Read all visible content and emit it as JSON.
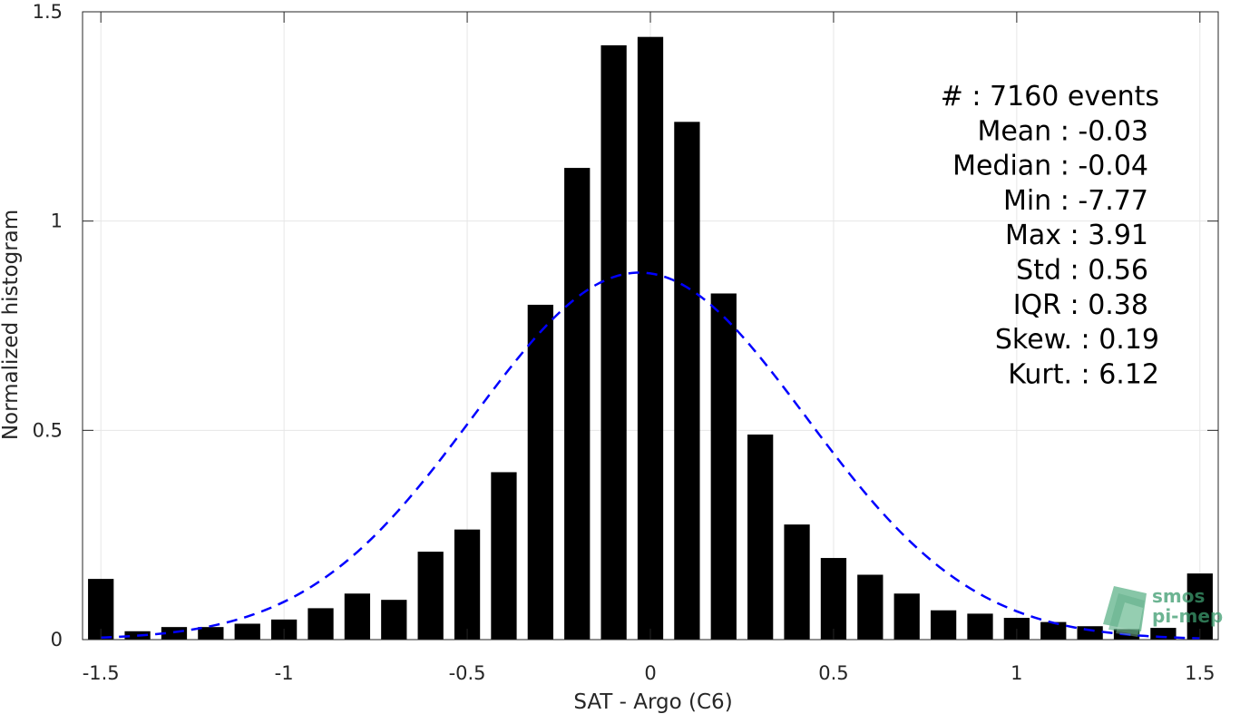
{
  "chart_data": {
    "type": "bar",
    "xlabel": "SAT - Argo (C6)",
    "ylabel": "Normalized histogram",
    "xlim": [
      -1.55,
      1.55
    ],
    "ylim": [
      0,
      1.5
    ],
    "x_ticks": [
      -1.5,
      -1,
      -0.5,
      0,
      0.5,
      1,
      1.5
    ],
    "x_tick_labels": [
      "-1.5",
      "-1",
      "-0.5",
      "0",
      "0.5",
      "1",
      "1.5"
    ],
    "y_ticks": [
      0,
      0.5,
      1,
      1.5
    ],
    "y_tick_labels": [
      "0",
      "0.5",
      "1",
      "1.5"
    ],
    "grid": true,
    "bar_width": 0.07,
    "bins": [
      {
        "x": -1.5,
        "value": 0.145
      },
      {
        "x": -1.4,
        "value": 0.02
      },
      {
        "x": -1.3,
        "value": 0.03
      },
      {
        "x": -1.2,
        "value": 0.03
      },
      {
        "x": -1.1,
        "value": 0.038
      },
      {
        "x": -1.0,
        "value": 0.048
      },
      {
        "x": -0.9,
        "value": 0.075
      },
      {
        "x": -0.8,
        "value": 0.11
      },
      {
        "x": -0.7,
        "value": 0.095
      },
      {
        "x": -0.6,
        "value": 0.21
      },
      {
        "x": -0.5,
        "value": 0.263
      },
      {
        "x": -0.4,
        "value": 0.4
      },
      {
        "x": -0.3,
        "value": 0.8
      },
      {
        "x": -0.2,
        "value": 1.127
      },
      {
        "x": -0.1,
        "value": 1.42
      },
      {
        "x": 0.0,
        "value": 1.44
      },
      {
        "x": 0.1,
        "value": 1.237
      },
      {
        "x": 0.2,
        "value": 0.827
      },
      {
        "x": 0.3,
        "value": 0.49
      },
      {
        "x": 0.4,
        "value": 0.275
      },
      {
        "x": 0.5,
        "value": 0.195
      },
      {
        "x": 0.6,
        "value": 0.155
      },
      {
        "x": 0.7,
        "value": 0.11
      },
      {
        "x": 0.8,
        "value": 0.07
      },
      {
        "x": 0.9,
        "value": 0.062
      },
      {
        "x": 1.0,
        "value": 0.052
      },
      {
        "x": 1.1,
        "value": 0.042
      },
      {
        "x": 1.2,
        "value": 0.032
      },
      {
        "x": 1.3,
        "value": 0.025
      },
      {
        "x": 1.4,
        "value": 0.028
      },
      {
        "x": 1.5,
        "value": 0.158
      }
    ],
    "fit_curve": {
      "type": "gaussian",
      "mean": -0.03,
      "std": 0.455,
      "x_range": [
        -1.5,
        1.5
      ],
      "color": "#0000ff",
      "style": "dashed"
    },
    "bar_color": "#000000",
    "annotations": [
      "#  : 7160 events",
      "Mean : -0.03",
      "Median : -0.04",
      "Min : -7.77",
      "Max : 3.91",
      "Std : 0.56",
      "IQR : 0.38",
      "Skew. : 0.19",
      "Kurt. : 6.12"
    ]
  },
  "logo": {
    "line1": "smos",
    "line2": "pi-mep",
    "color": "#3c9b6e"
  }
}
